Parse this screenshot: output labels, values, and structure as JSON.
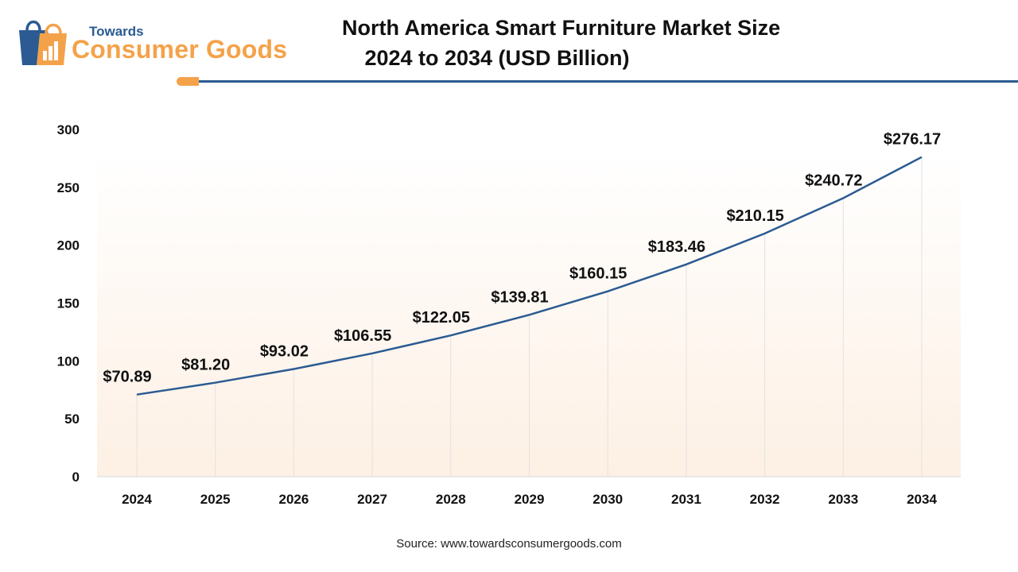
{
  "logo": {
    "line1": "Towards",
    "line2": "Consumer Goods"
  },
  "title": {
    "line1": "North America Smart Furniture Market Size",
    "line2": "2024 to 2034 (USD Billion)"
  },
  "source": "Source: www.towardsconsumergoods.com",
  "colors": {
    "line": "#2b5b92",
    "accent": "#f4a24a",
    "plot_bg_top": "#ffffff",
    "plot_bg_bottom": "#fdf0e4"
  },
  "chart_data": {
    "type": "line",
    "x": [
      "2024",
      "2025",
      "2026",
      "2027",
      "2028",
      "2029",
      "2030",
      "2031",
      "2032",
      "2033",
      "2034"
    ],
    "values": [
      70.89,
      81.2,
      93.02,
      106.55,
      122.05,
      139.81,
      160.15,
      183.46,
      210.15,
      240.72,
      276.17
    ],
    "data_labels": [
      "$70.89",
      "$81.20",
      "$93.02",
      "$106.55",
      "$122.05",
      "$139.81",
      "$160.15",
      "$183.46",
      "$210.15",
      "$240.72",
      "$276.17"
    ],
    "yticks": [
      "0",
      "50",
      "100",
      "150",
      "200",
      "250",
      "300"
    ],
    "ylim": [
      0,
      300
    ],
    "grid": "vertical",
    "legend": "none"
  }
}
